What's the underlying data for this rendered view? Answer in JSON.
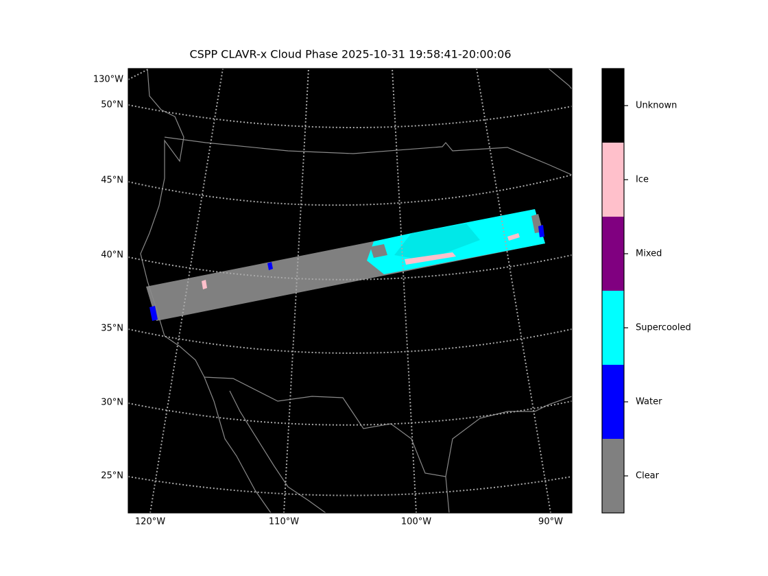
{
  "title": "CSPP CLAVR-x Cloud Phase 2025-10-31 19:58:41-20:00:06",
  "left_labels": [
    "130°W",
    "50°N",
    "45°N",
    "40°N",
    "35°N",
    "30°N",
    "25°N"
  ],
  "bottom_labels": [
    "120°W",
    "110°W",
    "100°W",
    "90°W"
  ],
  "legend": {
    "items": [
      {
        "label": "Clear",
        "color": "#808080"
      },
      {
        "label": "Water",
        "color": "#0000ff"
      },
      {
        "label": "Supercooled",
        "color": "#00ffff"
      },
      {
        "label": "Mixed",
        "color": "#800080"
      },
      {
        "label": "Ice",
        "color": "#ffc0cb"
      },
      {
        "label": "Unknown",
        "color": "#000000"
      }
    ]
  }
}
